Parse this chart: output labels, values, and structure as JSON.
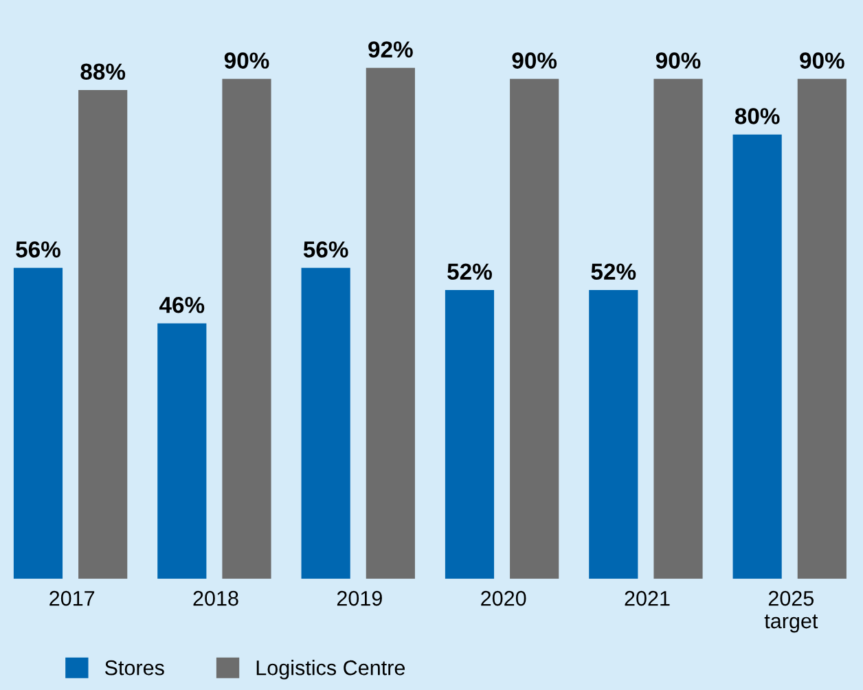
{
  "chart_data": {
    "type": "bar",
    "categories": [
      "2017",
      "2018",
      "2019",
      "2020",
      "2021",
      "2025\ntarget"
    ],
    "series": [
      {
        "name": "Stores",
        "color": "#0067b1",
        "values": [
          56,
          46,
          56,
          52,
          52,
          80
        ],
        "value_labels": [
          "56%",
          "46%",
          "56%",
          "52%",
          "52%",
          "80%"
        ]
      },
      {
        "name": "Logistics Centre",
        "color": "#6d6d6d",
        "values": [
          88,
          90,
          92,
          90,
          90,
          90
        ],
        "value_labels": [
          "88%",
          "90%",
          "92%",
          "90%",
          "90%",
          "90%"
        ]
      }
    ],
    "legend": "bottom",
    "grid": false
  }
}
